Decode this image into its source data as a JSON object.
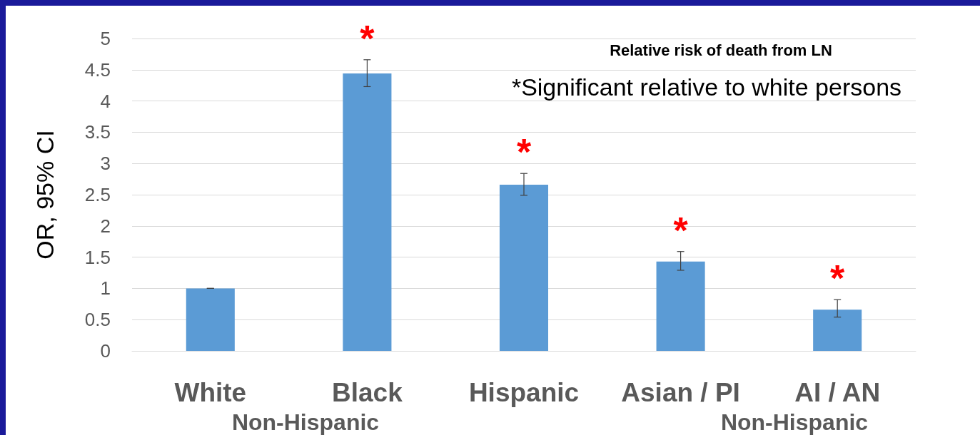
{
  "chart_data": {
    "type": "bar",
    "ylabel": "OR, 95% CI",
    "categories": [
      "White",
      "Black",
      "Hispanic",
      "Asian / PI",
      "AI / AN"
    ],
    "values": [
      1.0,
      4.44,
      2.66,
      1.43,
      0.66
    ],
    "errors": [
      null,
      [
        4.23,
        4.66
      ],
      [
        2.49,
        2.84
      ],
      [
        1.29,
        1.59
      ],
      [
        0.54,
        0.82
      ]
    ],
    "color": "#5b9bd5",
    "ylim": [
      0,
      5
    ],
    "yticks": [
      0,
      0.5,
      1,
      1.5,
      2,
      2.5,
      3,
      3.5,
      4,
      4.5,
      5
    ],
    "grid": "y",
    "annotations": [
      "Relative risk of death from LN",
      "*Significant relative to white persons",
      {
        "text": "*",
        "x": "Black",
        "y": 4.44
      },
      {
        "text": "*",
        "x": "Hispanic",
        "y": 2.66
      },
      {
        "text": "*",
        "x": "Asian / PI",
        "y": 1.43
      },
      {
        "text": "*",
        "x": "AI / AN",
        "y": 0.66
      },
      "Non-Hispanic",
      "Non-Hispanic"
    ]
  }
}
